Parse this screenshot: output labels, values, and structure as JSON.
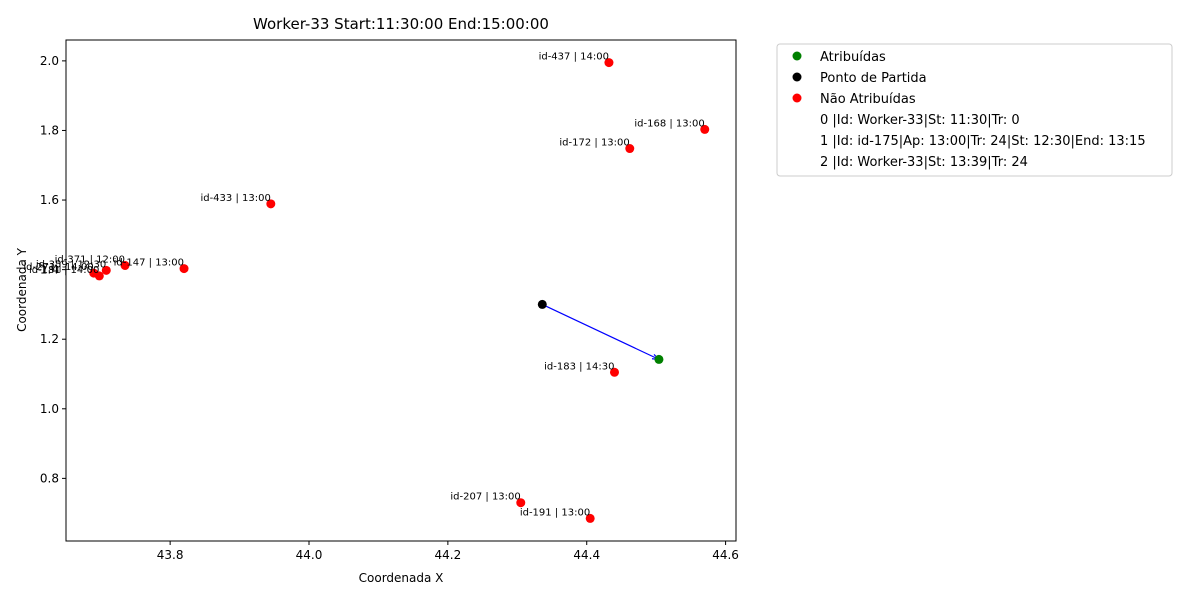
{
  "chart_data": {
    "type": "scatter",
    "title": "Worker-33 Start:11:30:00 End:15:00:00",
    "xlabel": "Coordenada X",
    "ylabel": "Coordenada Y",
    "xlim": [
      43.65,
      44.615
    ],
    "ylim": [
      0.62,
      2.06
    ],
    "xticks": [
      "43.8",
      "44.0",
      "44.2",
      "44.4",
      "44.6"
    ],
    "yticks": [
      "0.8",
      "1.0",
      "1.2",
      "1.4",
      "1.6",
      "1.8",
      "2.0"
    ],
    "grid": false,
    "legend_position": "outside-right",
    "colors": {
      "assigned": "#008000",
      "start": "#000000",
      "unassigned": "#ff0000",
      "route": "#0000ff"
    },
    "route": [
      {
        "x": 44.336,
        "y": 1.3
      },
      {
        "x": 44.504,
        "y": 1.142
      }
    ],
    "series": [
      {
        "name": "Atribuídas",
        "color": "#008000",
        "points": [
          {
            "x": 44.504,
            "y": 1.142,
            "label": ""
          }
        ]
      },
      {
        "name": "Ponto de Partida",
        "color": "#000000",
        "points": [
          {
            "x": 44.336,
            "y": 1.3,
            "label": ""
          }
        ]
      },
      {
        "name": "Não Atribuídas",
        "color": "#ff0000",
        "points": [
          {
            "x": 44.432,
            "y": 1.995,
            "label": "id-437 | 14:00"
          },
          {
            "x": 44.57,
            "y": 1.803,
            "label": "id-168 | 13:00"
          },
          {
            "x": 44.462,
            "y": 1.748,
            "label": "id-172 | 13:00"
          },
          {
            "x": 43.945,
            "y": 1.589,
            "label": "id-433 | 13:00"
          },
          {
            "x": 43.735,
            "y": 1.412,
            "label": "id-371 | 12:00"
          },
          {
            "x": 43.82,
            "y": 1.403,
            "label": "id-147 | 13:00"
          },
          {
            "x": 43.708,
            "y": 1.398,
            "label": "id-359 | 12:30"
          },
          {
            "x": 43.69,
            "y": 1.39,
            "label": "id-271 | 14:00"
          },
          {
            "x": 43.698,
            "y": 1.382,
            "label": "id-181 | 14:00"
          },
          {
            "x": 44.44,
            "y": 1.105,
            "label": "id-183 | 14:30"
          },
          {
            "x": 44.305,
            "y": 0.73,
            "label": "id-207 | 13:00"
          },
          {
            "x": 44.405,
            "y": 0.685,
            "label": "id-191 | 13:00"
          }
        ]
      }
    ],
    "legend_entries": [
      {
        "label": "Atribuídas",
        "color": "#008000"
      },
      {
        "label": "Ponto de Partida",
        "color": "#000000"
      },
      {
        "label": "Não Atribuídas",
        "color": "#ff0000"
      },
      {
        "label": "0 |Id: Worker-33|St: 11:30|Tr: 0",
        "color": ""
      },
      {
        "label": "1 |Id: id-175|Ap: 13:00|Tr: 24|St: 12:30|End: 13:15",
        "color": ""
      },
      {
        "label": "2 |Id: Worker-33|St: 13:39|Tr: 24",
        "color": ""
      }
    ]
  }
}
